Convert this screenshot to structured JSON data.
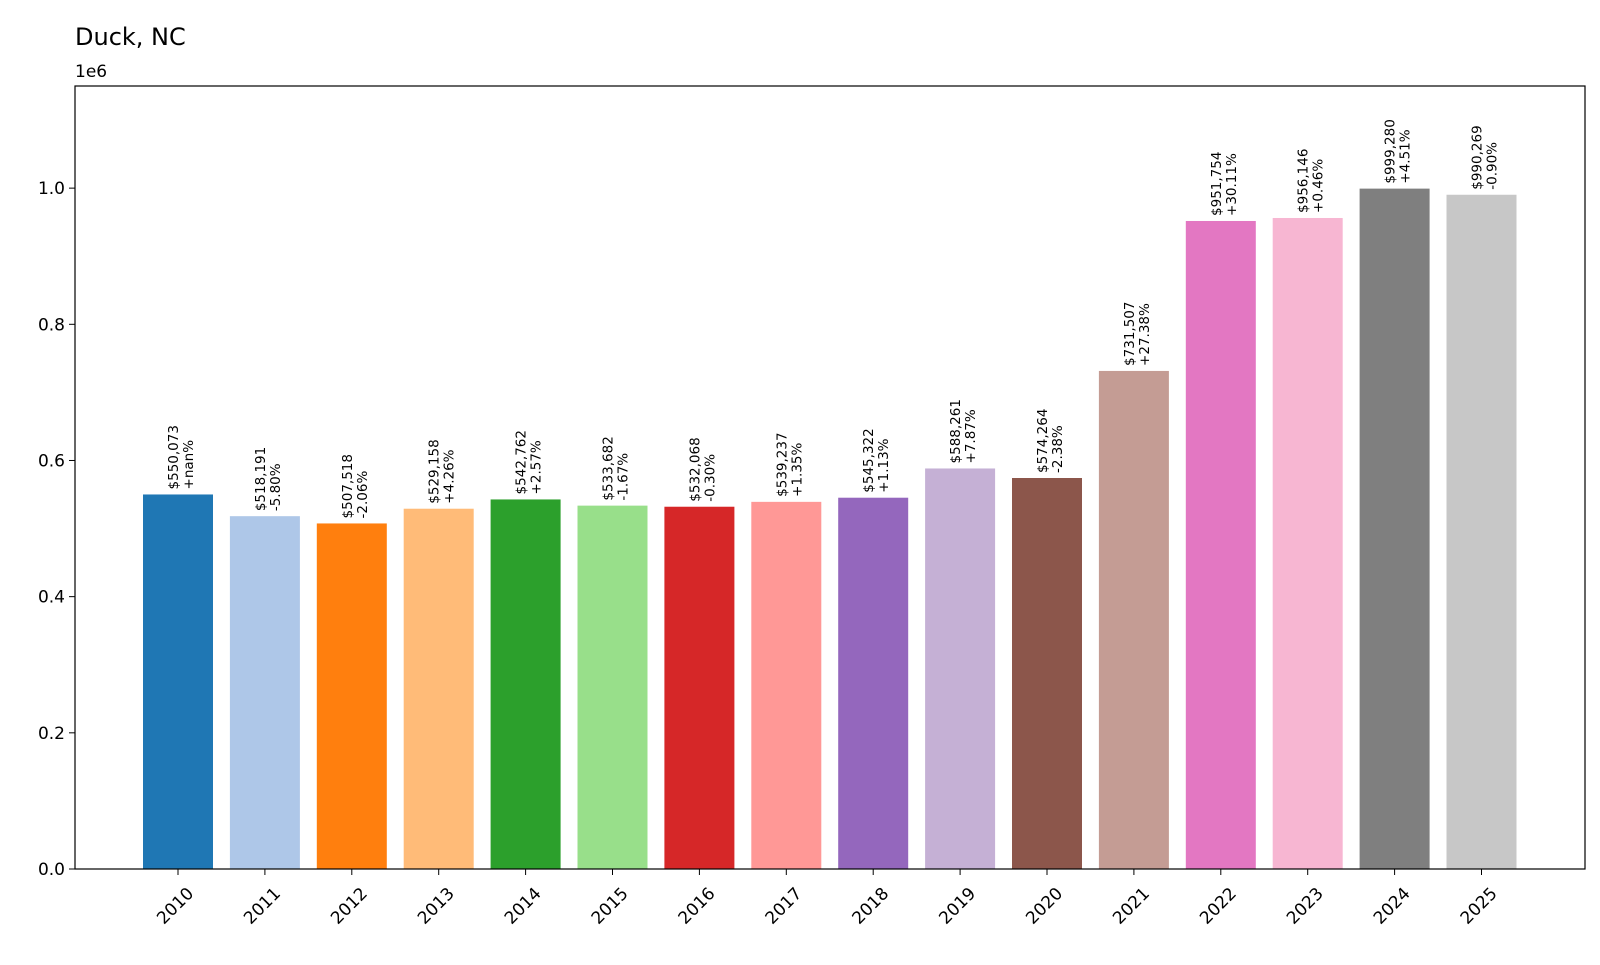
{
  "chart_data": {
    "type": "bar",
    "title": "Duck, NC",
    "y_offset_label": "1e6",
    "xlabel": "",
    "ylabel": "",
    "ylim": [
      0,
      1150000
    ],
    "y_ticks": [
      {
        "value": 0,
        "label": "0.0"
      },
      {
        "value": 200000,
        "label": "0.2"
      },
      {
        "value": 400000,
        "label": "0.4"
      },
      {
        "value": 600000,
        "label": "0.6"
      },
      {
        "value": 800000,
        "label": "0.8"
      },
      {
        "value": 1000000,
        "label": "1.0"
      }
    ],
    "grid": false,
    "categories": [
      "2010",
      "2011",
      "2012",
      "2013",
      "2014",
      "2015",
      "2016",
      "2017",
      "2018",
      "2019",
      "2020",
      "2021",
      "2022",
      "2023",
      "2024",
      "2025"
    ],
    "values": [
      550073,
      518191,
      507518,
      529158,
      542762,
      533682,
      532068,
      539237,
      545322,
      588261,
      574264,
      731507,
      951754,
      956146,
      999280,
      990269
    ],
    "value_labels": [
      "$550,073",
      "$518,191",
      "$507,518",
      "$529,158",
      "$542,762",
      "$533,682",
      "$532,068",
      "$539,237",
      "$545,322",
      "$588,261",
      "$574,264",
      "$731,507",
      "$951,754",
      "$956,146",
      "$999,280",
      "$990,269"
    ],
    "change_labels": [
      "+nan%",
      "-5.80%",
      "-2.06%",
      "+4.26%",
      "+2.57%",
      "-1.67%",
      "-0.30%",
      "+1.35%",
      "+1.13%",
      "+7.87%",
      "-2.38%",
      "+27.38%",
      "+30.11%",
      "+0.46%",
      "+4.51%",
      "-0.90%"
    ],
    "colors": [
      "#1f77b4",
      "#aec7e8",
      "#ff7f0e",
      "#ffbb78",
      "#2ca02c",
      "#98df8a",
      "#d62728",
      "#ff9896",
      "#9467bd",
      "#c5b0d5",
      "#8c564b",
      "#c49c94",
      "#e377c2",
      "#f7b6d2",
      "#7f7f7f",
      "#c7c7c7"
    ]
  }
}
